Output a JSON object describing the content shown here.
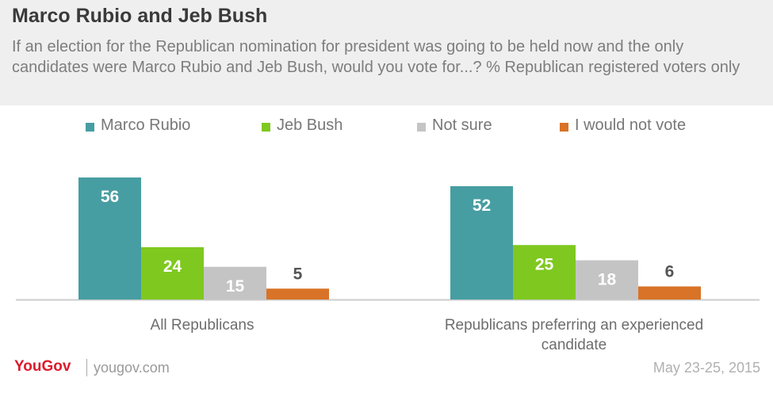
{
  "chart_data": {
    "type": "bar",
    "title": "Marco Rubio and Jeb Bush",
    "subtitle": "If an election for the Republican nomination for president was going to be held now and the only candidates were Marco Rubio and Jeb Bush, would you vote for...? % Republican registered voters only",
    "categories": [
      "All Republicans",
      "Republicans preferring an experienced candidate"
    ],
    "series": [
      {
        "name": "Marco Rubio",
        "color": "#479ea2",
        "values": [
          56,
          52
        ]
      },
      {
        "name": "Jeb Bush",
        "color": "#7fc820",
        "values": [
          24,
          25
        ]
      },
      {
        "name": "Not sure",
        "color": "#c4c4c4",
        "values": [
          15,
          18
        ]
      },
      {
        "name": "I would not vote",
        "color": "#d87327",
        "values": [
          5,
          6
        ]
      }
    ],
    "ylim": [
      0,
      60
    ],
    "legend_position": "top",
    "grid": false,
    "data_labels": true
  },
  "footer": {
    "logo": "YouGov",
    "site": "yougov.com",
    "date": "May 23-25, 2015"
  }
}
